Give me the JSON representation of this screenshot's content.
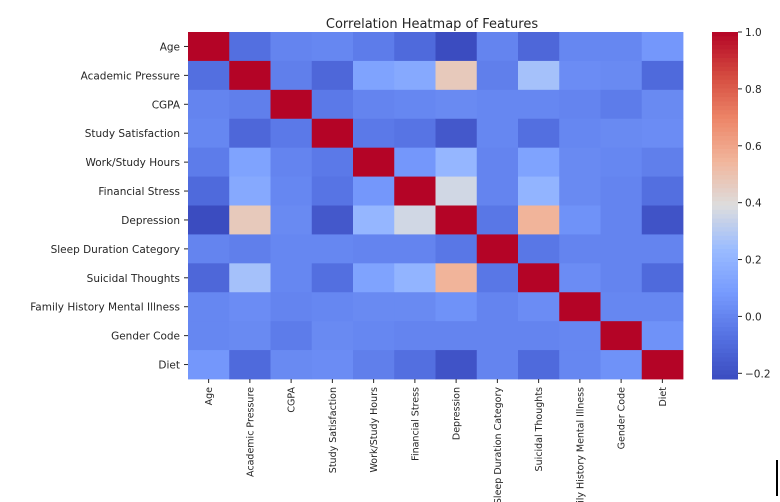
{
  "chart_data": {
    "type": "heatmap",
    "title": "Correlation Heatmap of Features",
    "xlabel": "",
    "ylabel": "",
    "labels": [
      "Age",
      "Academic Pressure",
      "CGPA",
      "Study Satisfaction",
      "Work/Study Hours",
      "Financial Stress",
      "Depression",
      "Sleep Duration Category",
      "Suicidal Thoughts",
      "Family History Mental Illness",
      "Gender Code",
      "Diet"
    ],
    "matrix": [
      [
        1.0,
        -0.08,
        0.0,
        0.01,
        -0.03,
        -0.1,
        -0.22,
        0.0,
        -0.11,
        0.01,
        0.01,
        0.07
      ],
      [
        -0.08,
        1.0,
        -0.02,
        -0.11,
        0.12,
        0.15,
        0.47,
        -0.02,
        0.26,
        0.03,
        0.02,
        -0.1
      ],
      [
        0.0,
        -0.02,
        1.0,
        -0.04,
        0.0,
        0.01,
        0.02,
        0.01,
        0.01,
        0.0,
        -0.03,
        0.02
      ],
      [
        0.01,
        -0.11,
        -0.04,
        1.0,
        -0.04,
        -0.06,
        -0.17,
        0.01,
        -0.08,
        0.01,
        0.02,
        0.03
      ],
      [
        -0.03,
        0.12,
        0.0,
        -0.04,
        1.0,
        0.07,
        0.21,
        0.0,
        0.12,
        0.02,
        0.01,
        -0.02
      ],
      [
        -0.1,
        0.15,
        0.01,
        -0.06,
        0.07,
        1.0,
        0.36,
        0.0,
        0.2,
        0.02,
        0.0,
        -0.08
      ],
      [
        -0.22,
        0.47,
        0.02,
        -0.17,
        0.21,
        0.36,
        1.0,
        -0.05,
        0.55,
        0.05,
        0.0,
        -0.19
      ],
      [
        0.0,
        -0.02,
        0.01,
        0.01,
        0.0,
        0.0,
        -0.05,
        1.0,
        -0.05,
        0.0,
        0.0,
        0.0
      ],
      [
        -0.11,
        0.26,
        0.01,
        -0.08,
        0.12,
        0.2,
        0.55,
        -0.05,
        1.0,
        0.03,
        0.0,
        -0.1
      ],
      [
        0.01,
        0.03,
        0.0,
        0.01,
        0.02,
        0.02,
        0.05,
        0.0,
        0.03,
        1.0,
        0.01,
        0.01
      ],
      [
        0.01,
        0.02,
        -0.03,
        0.02,
        0.01,
        0.0,
        0.0,
        0.0,
        0.0,
        0.01,
        1.0,
        0.05
      ],
      [
        0.07,
        -0.1,
        0.02,
        0.03,
        -0.02,
        -0.08,
        -0.19,
        0.0,
        -0.1,
        0.01,
        0.05,
        1.0
      ]
    ],
    "value_range": [
      -0.22,
      1.0
    ],
    "colormap": "coolwarm",
    "colorbar_ticks": [
      "1.0",
      "0.8",
      "0.6",
      "0.4",
      "0.2",
      "0.0",
      "−0.2"
    ],
    "colorbar_tick_values": [
      1.0,
      0.8,
      0.6,
      0.4,
      0.2,
      0.0,
      -0.2
    ],
    "grid": false,
    "legend": "colorbar-right"
  },
  "colors": {
    "low": "#3b4cc0",
    "mid": "#dddddd",
    "high": "#b40426",
    "text": "#262626"
  }
}
